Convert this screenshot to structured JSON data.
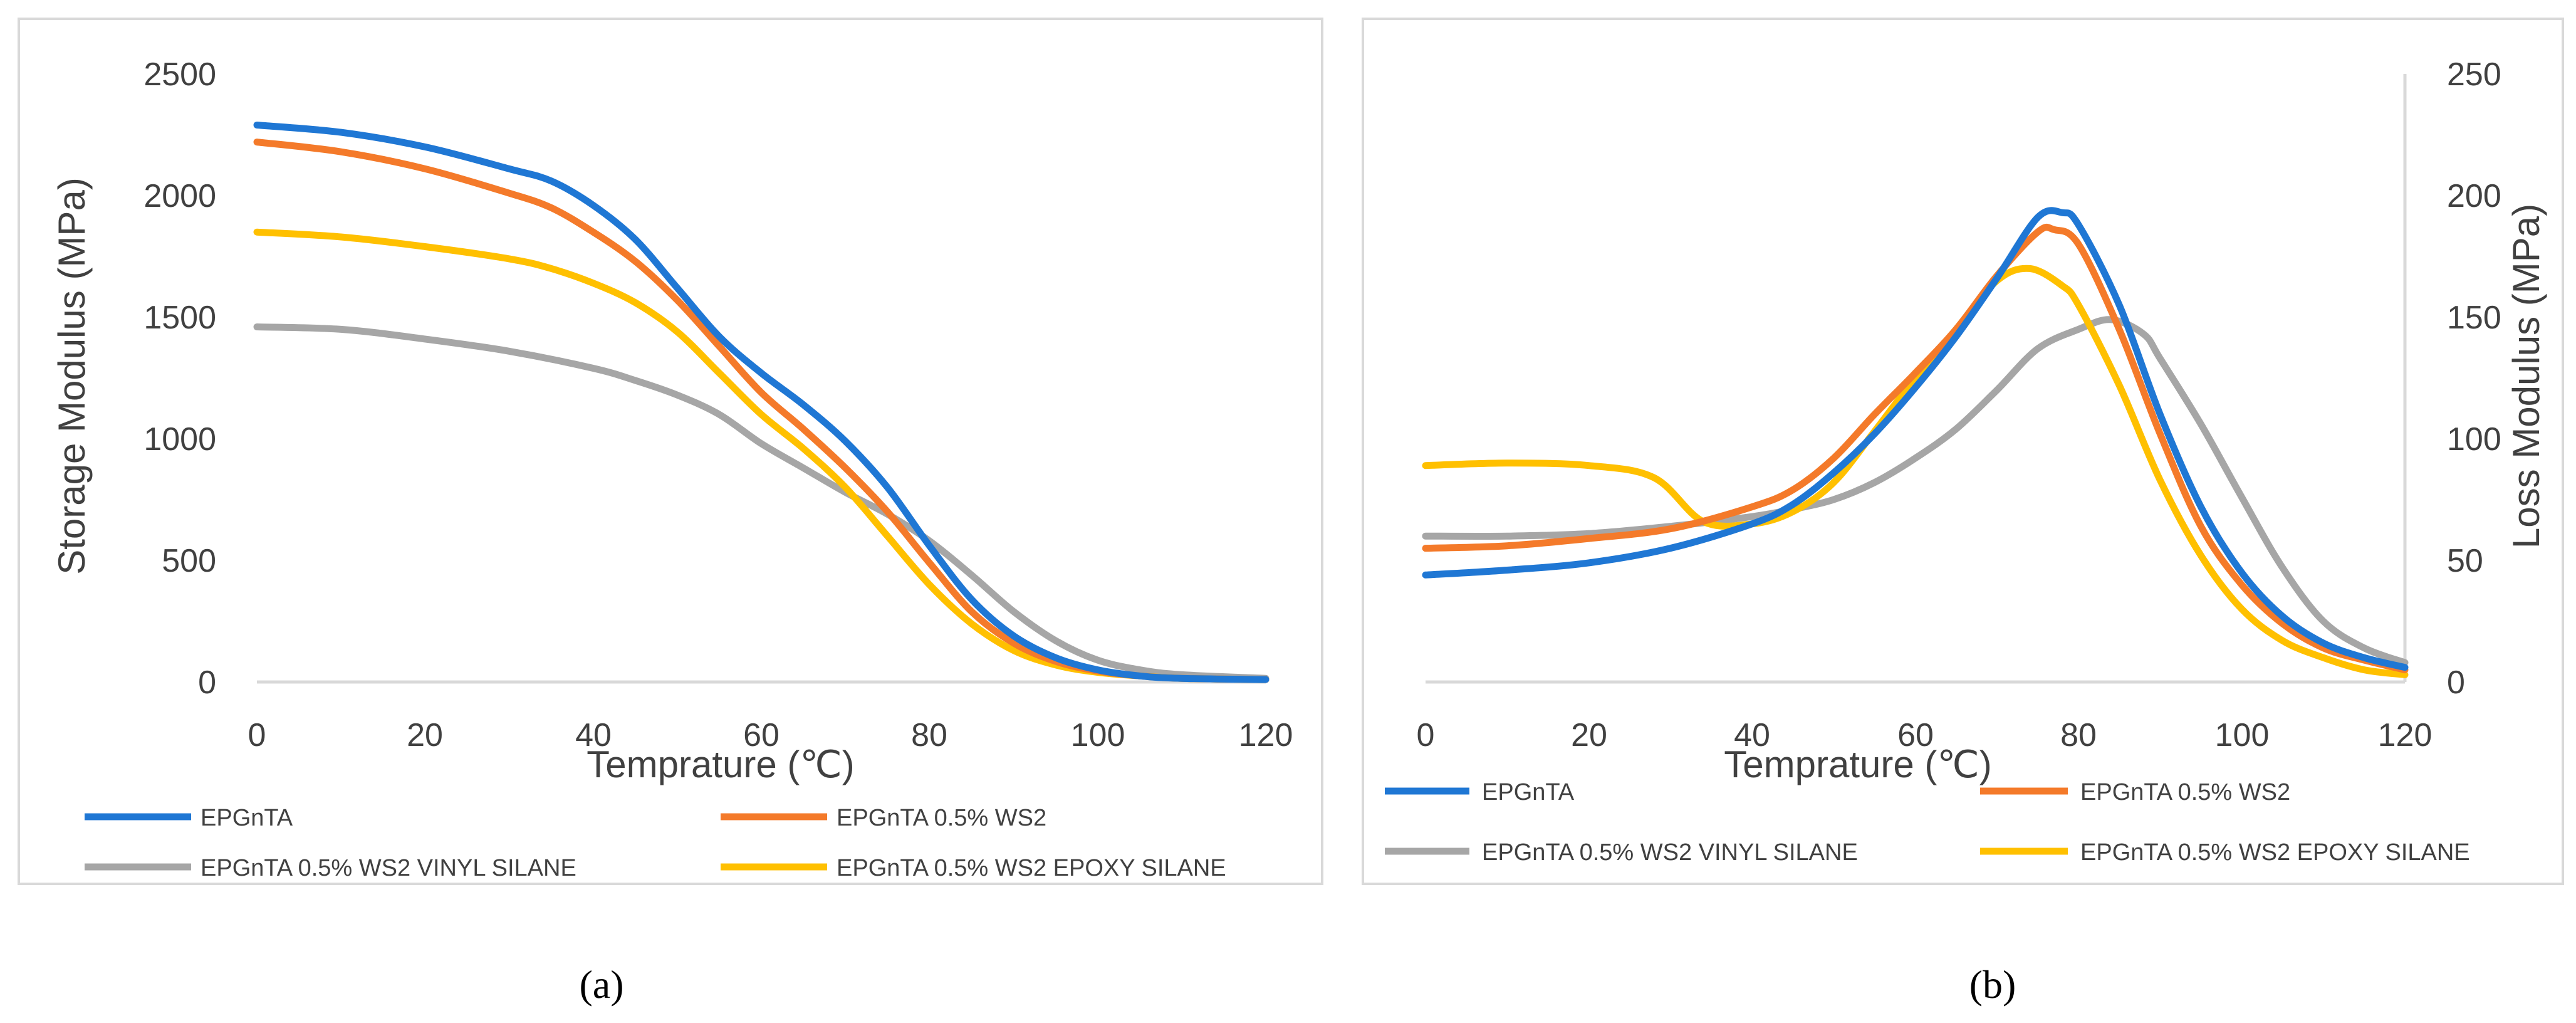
{
  "chart_data": [
    {
      "panel": "a",
      "type": "line",
      "caption": "(a)",
      "xlabel": "Temprature  (℃)",
      "ylabel": "Storage Modulus (MPa)",
      "xlim": [
        0,
        120
      ],
      "ylim": [
        0,
        2500
      ],
      "x_ticks": [
        "0",
        "20",
        "40",
        "60",
        "80",
        "100",
        "120"
      ],
      "y_ticks": [
        "0",
        "500",
        "1000",
        "1500",
        "2000",
        "2500"
      ],
      "y_axis_side": "left",
      "legend_position": "bottom",
      "series": [
        {
          "name": "EPGnTA",
          "color": "#1f77d4",
          "points": [
            [
              0,
              2290
            ],
            [
              10,
              2260
            ],
            [
              20,
              2200
            ],
            [
              30,
              2110
            ],
            [
              35,
              2060
            ],
            [
              40,
              1960
            ],
            [
              45,
              1820
            ],
            [
              50,
              1620
            ],
            [
              55,
              1420
            ],
            [
              60,
              1270
            ],
            [
              65,
              1140
            ],
            [
              70,
              990
            ],
            [
              75,
              800
            ],
            [
              80,
              560
            ],
            [
              85,
              340
            ],
            [
              90,
              190
            ],
            [
              95,
              100
            ],
            [
              100,
              50
            ],
            [
              105,
              25
            ],
            [
              110,
              15
            ],
            [
              120,
              10
            ]
          ]
        },
        {
          "name": "EPGnTA 0.5% WS2",
          "color": "#f47a2a",
          "points": [
            [
              0,
              2220
            ],
            [
              10,
              2180
            ],
            [
              20,
              2110
            ],
            [
              30,
              2010
            ],
            [
              35,
              1950
            ],
            [
              40,
              1850
            ],
            [
              45,
              1730
            ],
            [
              50,
              1570
            ],
            [
              55,
              1380
            ],
            [
              60,
              1190
            ],
            [
              65,
              1040
            ],
            [
              70,
              880
            ],
            [
              75,
              700
            ],
            [
              80,
              490
            ],
            [
              85,
              290
            ],
            [
              90,
              160
            ],
            [
              95,
              85
            ],
            [
              100,
              45
            ],
            [
              105,
              25
            ],
            [
              110,
              15
            ],
            [
              120,
              10
            ]
          ]
        },
        {
          "name": "EPGnTA 0.5% WS2 VINYL SILANE",
          "color": "#a6a6a6",
          "points": [
            [
              0,
              1460
            ],
            [
              10,
              1450
            ],
            [
              20,
              1410
            ],
            [
              30,
              1360
            ],
            [
              40,
              1290
            ],
            [
              45,
              1240
            ],
            [
              50,
              1180
            ],
            [
              55,
              1100
            ],
            [
              60,
              980
            ],
            [
              65,
              880
            ],
            [
              70,
              780
            ],
            [
              75,
              690
            ],
            [
              80,
              580
            ],
            [
              85,
              440
            ],
            [
              90,
              290
            ],
            [
              95,
              170
            ],
            [
              100,
              90
            ],
            [
              105,
              50
            ],
            [
              110,
              30
            ],
            [
              120,
              15
            ]
          ]
        },
        {
          "name": "EPGnTA 0.5% WS2 EPOXY SILANE",
          "color": "#ffc000",
          "points": [
            [
              0,
              1850
            ],
            [
              10,
              1830
            ],
            [
              20,
              1790
            ],
            [
              30,
              1740
            ],
            [
              35,
              1700
            ],
            [
              40,
              1640
            ],
            [
              45,
              1560
            ],
            [
              50,
              1440
            ],
            [
              55,
              1270
            ],
            [
              60,
              1100
            ],
            [
              65,
              960
            ],
            [
              70,
              800
            ],
            [
              75,
              600
            ],
            [
              80,
              400
            ],
            [
              85,
              240
            ],
            [
              90,
              130
            ],
            [
              95,
              70
            ],
            [
              100,
              40
            ],
            [
              105,
              25
            ],
            [
              110,
              15
            ],
            [
              120,
              10
            ]
          ]
        }
      ]
    },
    {
      "panel": "b",
      "type": "line",
      "caption": "(b)",
      "xlabel": "Temprature  (℃)",
      "ylabel": "Loss  Modulus (MPa)",
      "xlim": [
        0,
        120
      ],
      "ylim": [
        0,
        250
      ],
      "x_ticks": [
        "0",
        "20",
        "40",
        "60",
        "80",
        "100",
        "120"
      ],
      "y_ticks": [
        "0",
        "50",
        "100",
        "150",
        "200",
        "250"
      ],
      "y_axis_side": "right",
      "legend_position": "bottom",
      "series": [
        {
          "name": "EPGnTA",
          "color": "#1f77d4",
          "points": [
            [
              0,
              44
            ],
            [
              10,
              46
            ],
            [
              20,
              49
            ],
            [
              30,
              55
            ],
            [
              40,
              65
            ],
            [
              45,
              73
            ],
            [
              50,
              86
            ],
            [
              55,
              102
            ],
            [
              60,
              121
            ],
            [
              65,
              142
            ],
            [
              70,
              166
            ],
            [
              75,
              191
            ],
            [
              78,
              193
            ],
            [
              80,
              188
            ],
            [
              85,
              155
            ],
            [
              90,
              110
            ],
            [
              95,
              72
            ],
            [
              100,
              45
            ],
            [
              105,
              27
            ],
            [
              110,
              16
            ],
            [
              115,
              10
            ],
            [
              120,
              6
            ]
          ]
        },
        {
          "name": "EPGnTA 0.5% WS2",
          "color": "#f47a2a",
          "points": [
            [
              0,
              55
            ],
            [
              10,
              56
            ],
            [
              20,
              59
            ],
            [
              30,
              63
            ],
            [
              40,
              72
            ],
            [
              45,
              79
            ],
            [
              50,
              92
            ],
            [
              55,
              110
            ],
            [
              60,
              127
            ],
            [
              65,
              145
            ],
            [
              70,
              167
            ],
            [
              75,
              185
            ],
            [
              77,
              186
            ],
            [
              80,
              180
            ],
            [
              85,
              145
            ],
            [
              90,
              102
            ],
            [
              95,
              64
            ],
            [
              100,
              40
            ],
            [
              105,
              24
            ],
            [
              110,
              14
            ],
            [
              115,
              9
            ],
            [
              120,
              5
            ]
          ]
        },
        {
          "name": "EPGnTA 0.5% WS2 VINYL SILANE",
          "color": "#a6a6a6",
          "points": [
            [
              0,
              60
            ],
            [
              10,
              60
            ],
            [
              20,
              61
            ],
            [
              30,
              64
            ],
            [
              40,
              68
            ],
            [
              45,
              71
            ],
            [
              50,
              75
            ],
            [
              55,
              82
            ],
            [
              60,
              92
            ],
            [
              65,
              104
            ],
            [
              70,
              120
            ],
            [
              75,
              137
            ],
            [
              80,
              145
            ],
            [
              84,
              149
            ],
            [
              88,
              143
            ],
            [
              90,
              133
            ],
            [
              95,
              106
            ],
            [
              100,
              76
            ],
            [
              105,
              47
            ],
            [
              110,
              25
            ],
            [
              115,
              14
            ],
            [
              120,
              8
            ]
          ]
        },
        {
          "name": "EPGnTA 0.5% WS2 EPOXY SILANE",
          "color": "#ffc000",
          "points": [
            [
              0,
              89
            ],
            [
              10,
              90
            ],
            [
              20,
              89
            ],
            [
              28,
              84
            ],
            [
              34,
              66
            ],
            [
              40,
              65
            ],
            [
              45,
              70
            ],
            [
              50,
              82
            ],
            [
              55,
              103
            ],
            [
              60,
              125
            ],
            [
              65,
              145
            ],
            [
              70,
              165
            ],
            [
              74,
              170
            ],
            [
              78,
              163
            ],
            [
              80,
              155
            ],
            [
              85,
              122
            ],
            [
              90,
              83
            ],
            [
              95,
              52
            ],
            [
              100,
              30
            ],
            [
              105,
              17
            ],
            [
              110,
              10
            ],
            [
              115,
              5
            ],
            [
              120,
              3
            ]
          ]
        }
      ]
    }
  ]
}
